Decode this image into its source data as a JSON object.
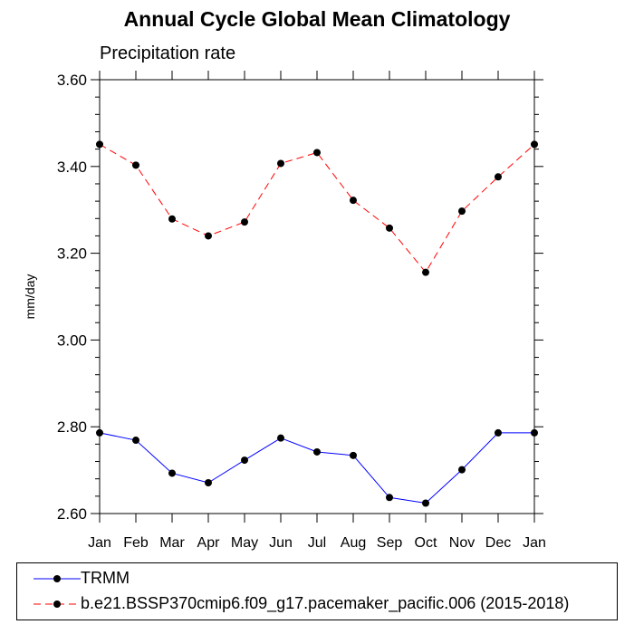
{
  "chart_data": {
    "type": "line",
    "title": "Annual Cycle Global Mean Climatology",
    "subtitle": "Precipitation rate",
    "xlabel": "",
    "ylabel": "mm/day",
    "categories": [
      "Jan",
      "Feb",
      "Mar",
      "Apr",
      "May",
      "Jun",
      "Jul",
      "Aug",
      "Sep",
      "Oct",
      "Nov",
      "Dec",
      "Jan"
    ],
    "ylim": [
      2.6,
      3.6
    ],
    "yticks": [
      2.6,
      2.8,
      3.0,
      3.2,
      3.4,
      3.6
    ],
    "ytick_labels": [
      "2.60",
      "2.80",
      "3.00",
      "3.20",
      "3.40",
      "3.60"
    ],
    "series": [
      {
        "name": "TRMM",
        "color": "#0000ff",
        "style": "solid",
        "values": [
          2.786,
          2.769,
          2.693,
          2.671,
          2.723,
          2.774,
          2.742,
          2.734,
          2.637,
          2.624,
          2.701,
          2.786,
          2.786
        ]
      },
      {
        "name": "b.e21.BSSP370cmip6.f09_g17.pacemaker_pacific.006 (2015-2018)",
        "color": "#ff0000",
        "style": "dashed",
        "values": [
          3.451,
          3.403,
          3.279,
          3.24,
          3.272,
          3.407,
          3.432,
          3.322,
          3.258,
          3.156,
          3.297,
          3.376,
          3.451
        ]
      }
    ]
  }
}
